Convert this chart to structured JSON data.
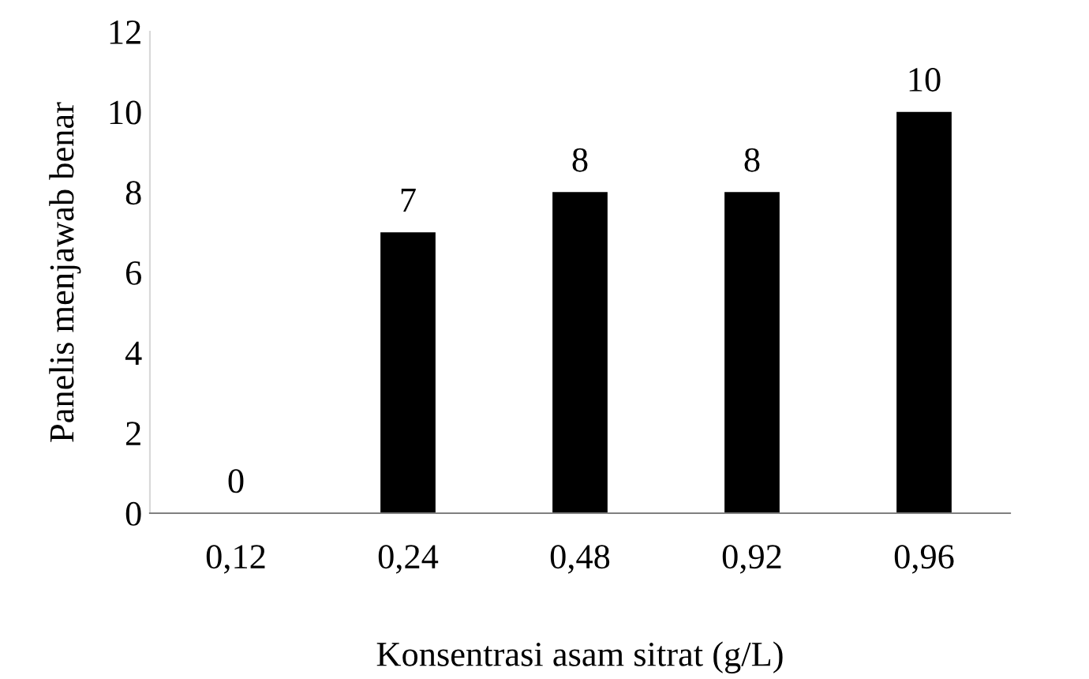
{
  "chart_data": {
    "type": "bar",
    "xlabel": "Konsentrasi asam sitrat (g/L)",
    "ylabel": "Panelis menjawab benar",
    "categories": [
      "0,12",
      "0,24",
      "0,48",
      "0,92",
      "0,96"
    ],
    "values": [
      0,
      7,
      8,
      8,
      10
    ],
    "color": "#000000",
    "ylim": [
      0,
      12
    ],
    "yticks": [
      0,
      2,
      4,
      6,
      8,
      10,
      12
    ],
    "grid": false,
    "data_labels": true
  }
}
